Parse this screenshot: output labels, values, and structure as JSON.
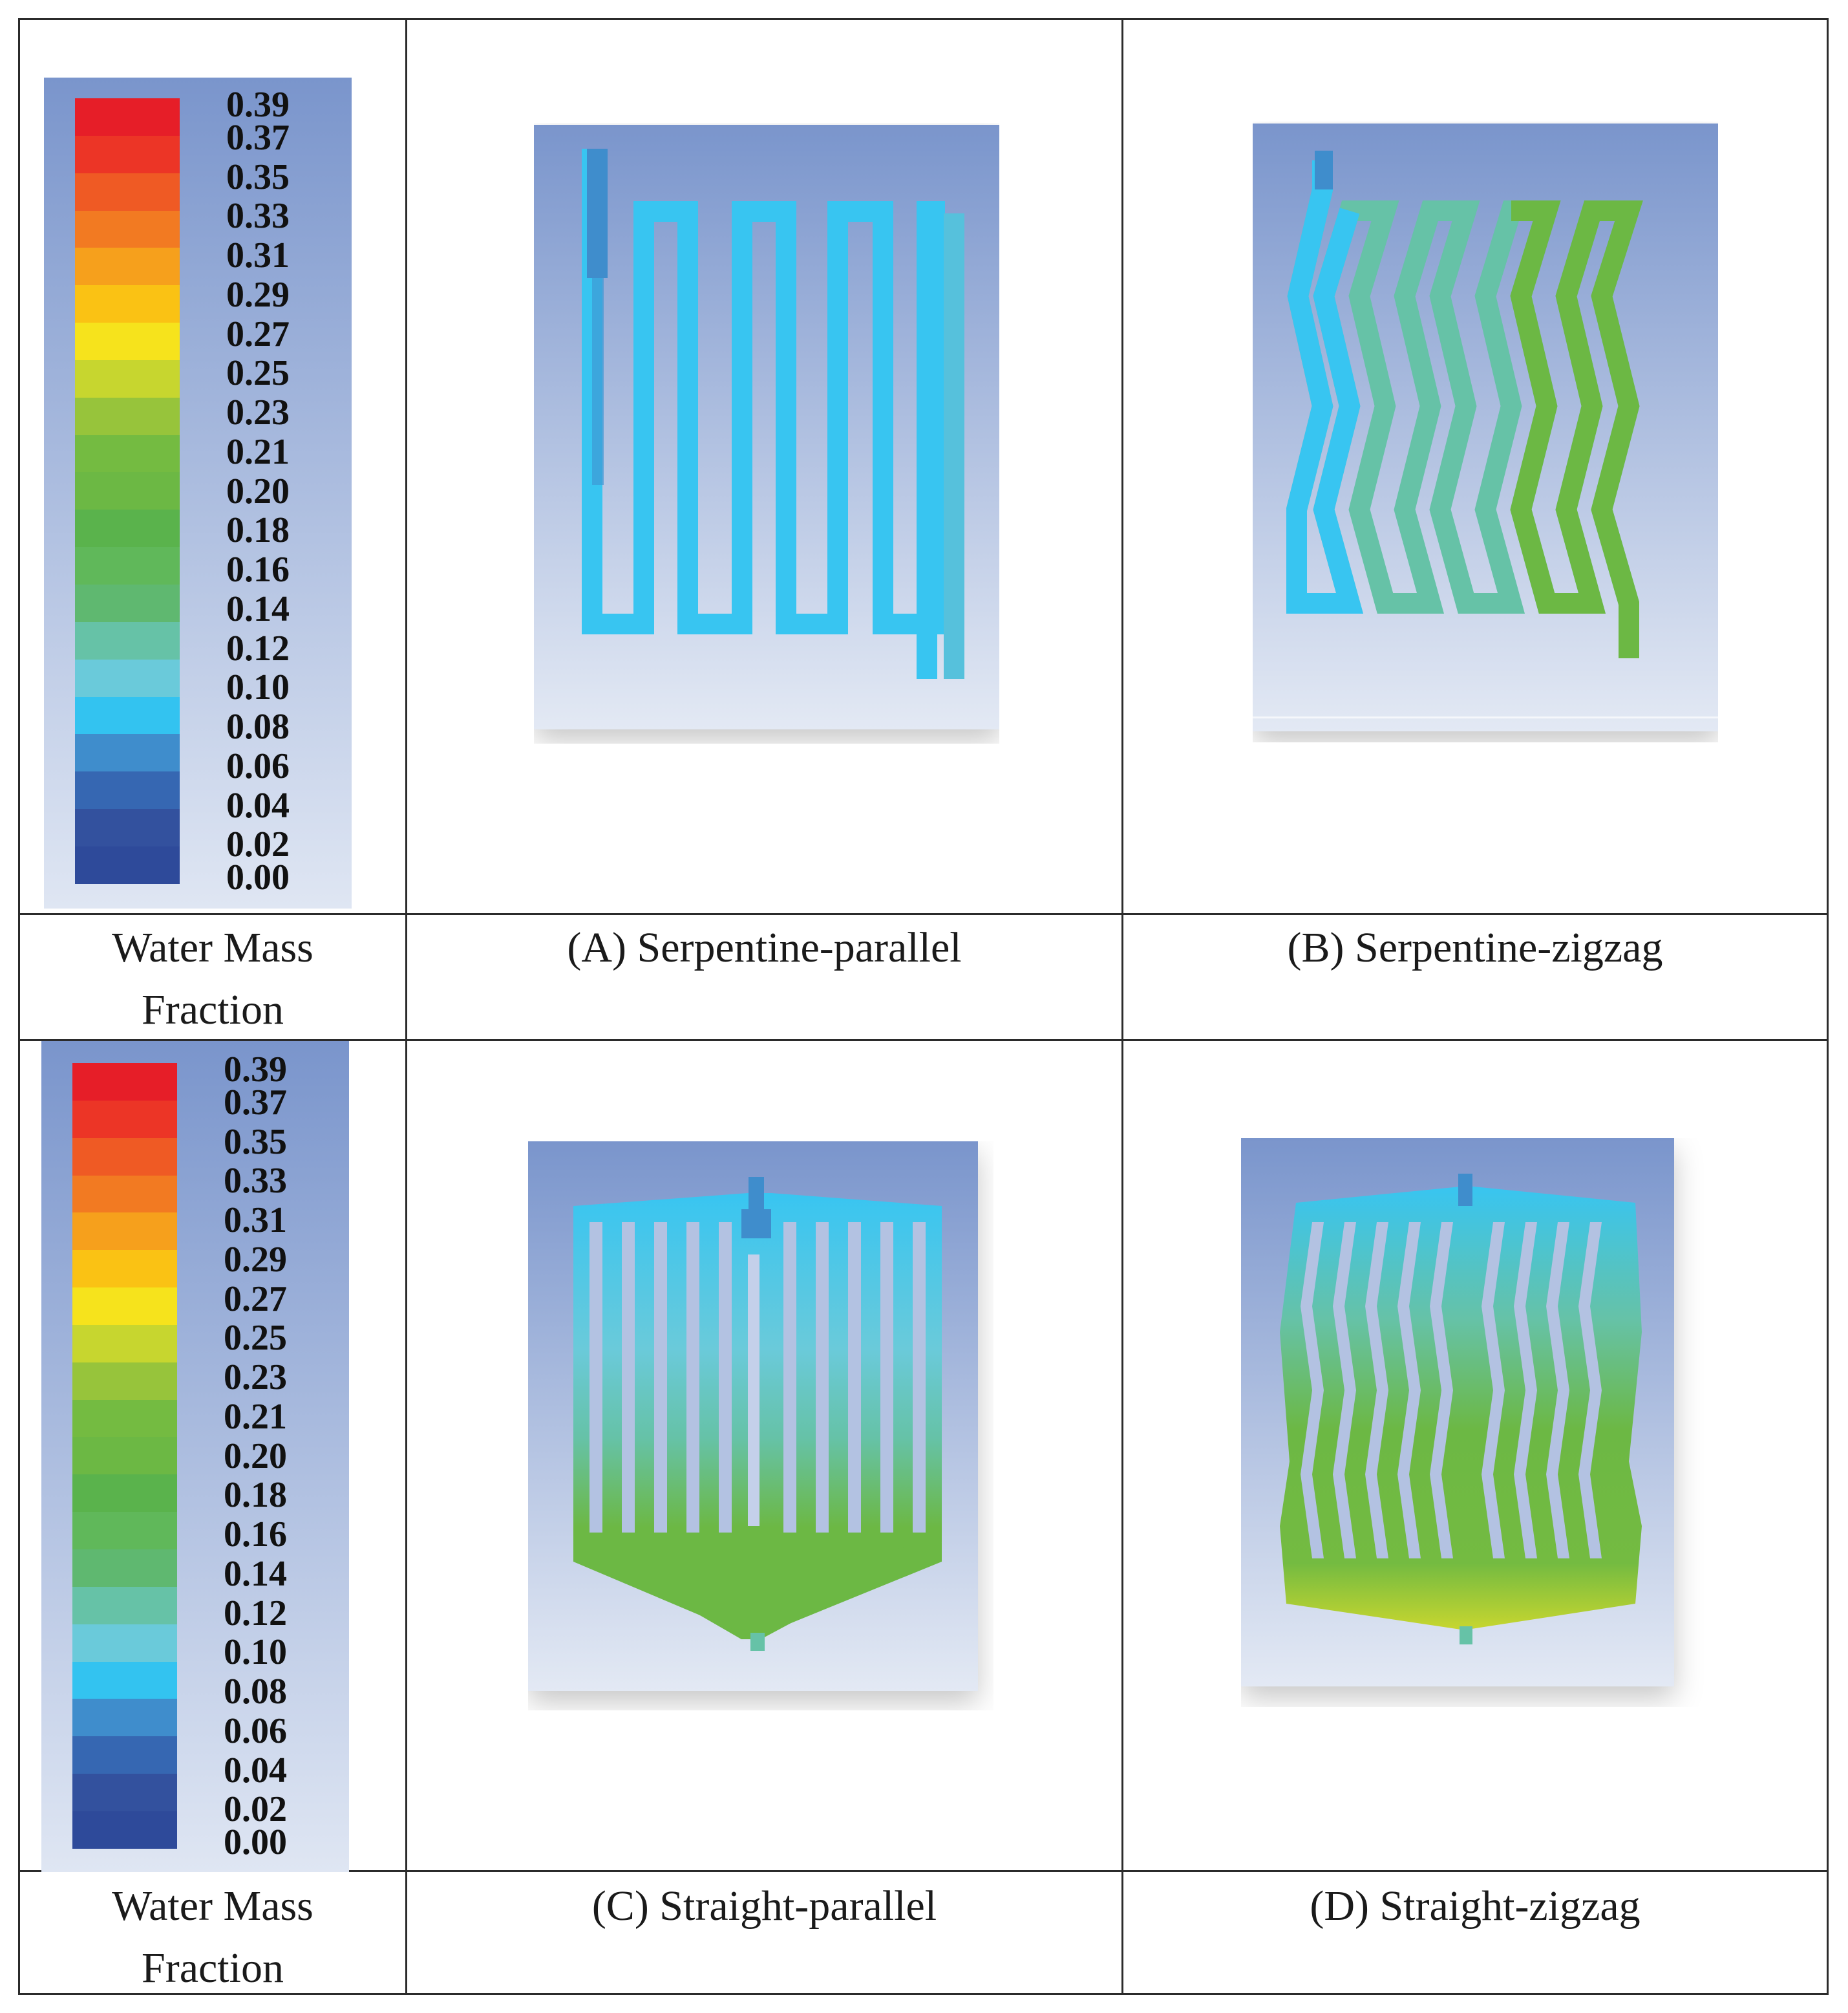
{
  "legend": {
    "title_line1": "Water Mass",
    "title_line2": "Fraction",
    "ticks": [
      "0.39",
      "0.37",
      "0.35",
      "0.33",
      "0.31",
      "0.29",
      "0.27",
      "0.25",
      "0.23",
      "0.21",
      "0.20",
      "0.18",
      "0.16",
      "0.14",
      "0.12",
      "0.10",
      "0.08",
      "0.06",
      "0.04",
      "0.02",
      "0.00"
    ],
    "colors": [
      "#e61e28",
      "#ec3526",
      "#ef5a24",
      "#f27a22",
      "#f6a01c",
      "#fac214",
      "#f6e31c",
      "#c7d62f",
      "#97c43b",
      "#74bb41",
      "#6cb844",
      "#5ab34c",
      "#60b85a",
      "#5fb870",
      "#66c2a7",
      "#6acada",
      "#33c3f0",
      "#3f8dcc",
      "#3667b2",
      "#33519e",
      "#2e4a9a"
    ]
  },
  "panels": [
    {
      "id": "A",
      "caption": "(A) Serpentine-parallel"
    },
    {
      "id": "B",
      "caption": "(B) Serpentine-zigzag"
    },
    {
      "id": "C",
      "caption": "(C) Straight-parallel"
    },
    {
      "id": "D",
      "caption": "(D) Straight-zigzag"
    }
  ]
}
